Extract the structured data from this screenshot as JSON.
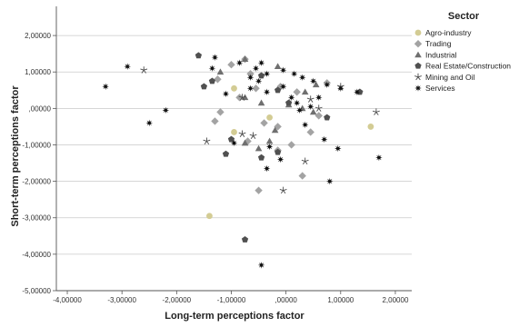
{
  "chart_data": {
    "type": "scatter",
    "xlabel": "Long-term perceptions factor",
    "ylabel": "Short-term perceptions factor",
    "xlim": [
      -4.2,
      2.3
    ],
    "ylim": [
      -5.0,
      2.8
    ],
    "xticks": [
      -4,
      -3,
      -2,
      -1,
      0,
      1,
      2
    ],
    "yticks": [
      -5,
      -4,
      -3,
      -2,
      -1,
      0,
      1,
      2
    ],
    "xtick_labels": [
      "-4,00000",
      "-3,00000",
      "-2,00000",
      "-1,00000",
      ",00000",
      "1,00000",
      "2,00000"
    ],
    "ytick_labels": [
      "-5,00000",
      "-4,00000",
      "-3,00000",
      "-2,00000",
      "-1,00000",
      ",00000",
      "1,00000",
      "2,00000"
    ],
    "grid": "horizontal",
    "legend_title": "Sector",
    "legend_position": "right",
    "series": [
      {
        "name": "Agro-industry",
        "marker": "circle",
        "color": "#d3cc94",
        "points": [
          [
            -0.95,
            0.55
          ],
          [
            -0.3,
            -0.25
          ],
          [
            -0.95,
            -0.65
          ],
          [
            1.55,
            -0.5
          ],
          [
            -1.4,
            -2.95
          ]
        ]
      },
      {
        "name": "Trading",
        "marker": "diamond",
        "color": "#a3a3a3",
        "points": [
          [
            -1.0,
            1.2
          ],
          [
            -0.75,
            1.35
          ],
          [
            -0.65,
            0.95
          ],
          [
            -1.25,
            0.8
          ],
          [
            -0.55,
            0.55
          ],
          [
            -0.1,
            0.6
          ],
          [
            0.2,
            0.45
          ],
          [
            -0.85,
            0.3
          ],
          [
            -1.3,
            -0.35
          ],
          [
            -1.2,
            -0.1
          ],
          [
            -0.4,
            -0.4
          ],
          [
            -0.15,
            -0.5
          ],
          [
            0.45,
            -0.65
          ],
          [
            -0.7,
            -0.9
          ],
          [
            -0.15,
            -1.15
          ],
          [
            0.1,
            -1.0
          ],
          [
            0.3,
            -1.85
          ],
          [
            -0.5,
            -2.25
          ],
          [
            0.6,
            -0.2
          ],
          [
            0.75,
            0.7
          ]
        ]
      },
      {
        "name": "Industrial",
        "marker": "triangle",
        "color": "#6f6f6f",
        "points": [
          [
            -1.2,
            1.0
          ],
          [
            -0.75,
            1.35
          ],
          [
            -0.15,
            1.15
          ],
          [
            0.35,
            0.45
          ],
          [
            0.55,
            0.65
          ],
          [
            -0.75,
            0.3
          ],
          [
            -0.45,
            0.15
          ],
          [
            0.05,
            0.1
          ],
          [
            0.3,
            0.0
          ],
          [
            -0.2,
            -0.6
          ],
          [
            -0.5,
            -1.1
          ],
          [
            -0.75,
            -0.95
          ],
          [
            -0.3,
            -0.9
          ],
          [
            0.5,
            -0.1
          ]
        ]
      },
      {
        "name": "Real Estate/Construction",
        "marker": "pentagon",
        "color": "#505050",
        "points": [
          [
            -1.6,
            1.45
          ],
          [
            -1.5,
            0.6
          ],
          [
            -1.35,
            0.75
          ],
          [
            -0.45,
            0.9
          ],
          [
            -0.15,
            0.5
          ],
          [
            0.75,
            -0.25
          ],
          [
            1.35,
            0.45
          ],
          [
            -1.0,
            -0.85
          ],
          [
            -1.1,
            -1.25
          ],
          [
            -0.45,
            -1.35
          ],
          [
            -0.15,
            -1.2
          ],
          [
            -0.75,
            -3.6
          ],
          [
            0.05,
            0.15
          ]
        ]
      },
      {
        "name": "Mining and Oil",
        "marker": "star",
        "color": "#4a4a4a",
        "points": [
          [
            -2.6,
            1.05
          ],
          [
            -1.45,
            -0.9
          ],
          [
            -0.8,
            0.3
          ],
          [
            -0.8,
            -0.7
          ],
          [
            -0.6,
            -0.75
          ],
          [
            0.45,
            0.25
          ],
          [
            0.35,
            -1.45
          ],
          [
            -0.05,
            -2.25
          ],
          [
            1.65,
            -0.1
          ],
          [
            1.0,
            0.6
          ],
          [
            0.6,
            0.0
          ]
        ]
      },
      {
        "name": "Services",
        "marker": "burst",
        "color": "#111111",
        "points": [
          [
            -3.3,
            0.6
          ],
          [
            -2.9,
            1.15
          ],
          [
            -2.5,
            -0.4
          ],
          [
            -2.2,
            -0.05
          ],
          [
            -1.3,
            1.4
          ],
          [
            -1.35,
            1.1
          ],
          [
            -0.85,
            1.25
          ],
          [
            -0.55,
            1.1
          ],
          [
            -0.45,
            1.25
          ],
          [
            -0.35,
            0.95
          ],
          [
            -0.05,
            1.05
          ],
          [
            0.15,
            0.95
          ],
          [
            0.3,
            0.85
          ],
          [
            0.5,
            0.75
          ],
          [
            0.75,
            0.65
          ],
          [
            1.0,
            0.55
          ],
          [
            1.3,
            0.45
          ],
          [
            -0.5,
            0.75
          ],
          [
            -0.65,
            0.85
          ],
          [
            -1.1,
            0.4
          ],
          [
            -0.65,
            0.55
          ],
          [
            -0.35,
            0.45
          ],
          [
            0.2,
            0.15
          ],
          [
            0.25,
            -0.05
          ],
          [
            0.45,
            0.05
          ],
          [
            0.6,
            0.3
          ],
          [
            0.7,
            -0.85
          ],
          [
            0.95,
            -1.1
          ],
          [
            -0.95,
            -0.95
          ],
          [
            -0.3,
            -1.05
          ],
          [
            -0.1,
            -1.4
          ],
          [
            0.35,
            -0.45
          ],
          [
            -0.35,
            -1.65
          ],
          [
            0.8,
            -2.0
          ],
          [
            1.7,
            -1.35
          ],
          [
            -0.45,
            -4.3
          ],
          [
            -0.05,
            0.6
          ],
          [
            0.1,
            0.3
          ]
        ]
      }
    ]
  }
}
